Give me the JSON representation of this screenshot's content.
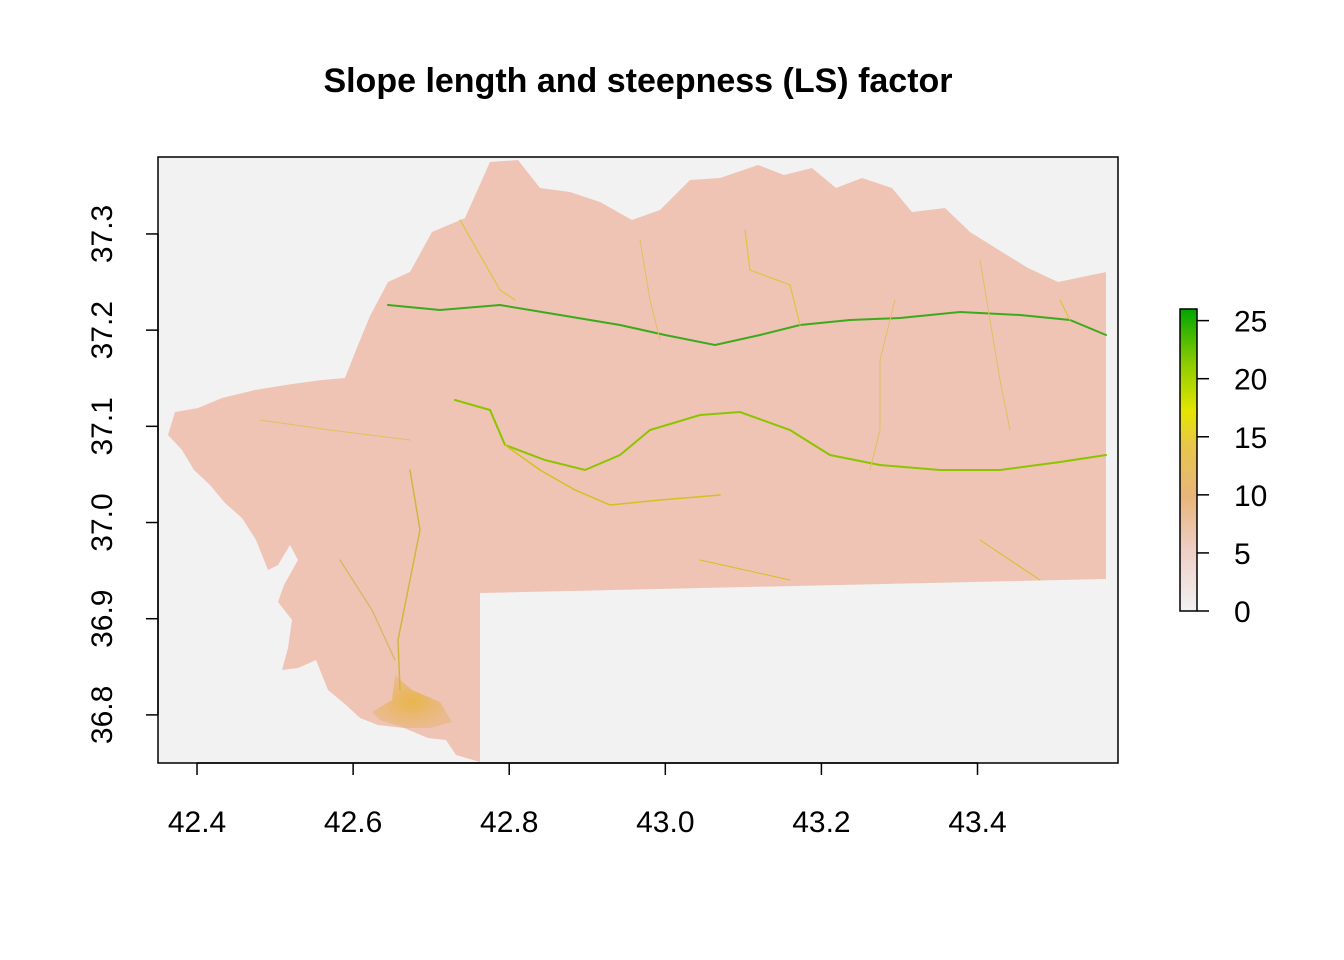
{
  "chart_data": {
    "type": "heatmap",
    "title": "Slope length and steepness (LS) factor",
    "xlabel": "",
    "ylabel": "",
    "xlim": [
      42.35,
      43.58
    ],
    "ylim": [
      36.75,
      37.38
    ],
    "x_ticks": [
      "42.4",
      "42.6",
      "42.8",
      "43.0",
      "43.2",
      "43.4"
    ],
    "y_ticks": [
      "36.8",
      "36.9",
      "37.0",
      "37.1",
      "37.2",
      "37.3"
    ],
    "legend": {
      "position": "right",
      "range": [
        0,
        26
      ],
      "ticks": [
        "0",
        "5",
        "10",
        "15",
        "20",
        "25"
      ],
      "colors": [
        "#f2f2f2",
        "#eecfc6",
        "#e8b57a",
        "#e8c64a",
        "#e5e600",
        "#8ccc00",
        "#00a600"
      ]
    },
    "background_color": "#f2f2f2",
    "raster_base_color": "#efc4b5"
  }
}
